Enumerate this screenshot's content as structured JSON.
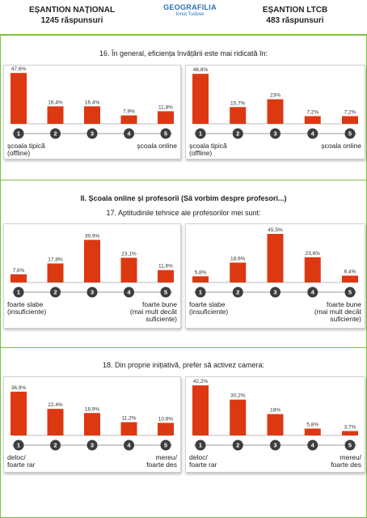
{
  "header": {
    "left_title": "EȘANTION NAȚIONAL",
    "left_sub": "1245 răspunsuri",
    "logo_main": "GEOGRAFILIA",
    "logo_sub": "Ionuț Tudose",
    "right_title": "EȘANTION LTCB",
    "right_sub": "483 răspunsuri"
  },
  "questions": {
    "q16": "16. În general, eficiența învățării este mai ridicată în:",
    "section": "II. Școala online și profesorii (Să vorbim despre profesori...)",
    "q17": "17. Aptitudinile tehnice ale profesorilor mei sunt:",
    "q18": "18. Din proprie inițiativă, prefer să activez camera:"
  },
  "colors": {
    "bar": "#dc3912",
    "circle": "#3d3d3d",
    "accent": "#7bc043"
  },
  "chart_data": [
    {
      "type": "bar",
      "question": "16",
      "sample": "EȘANTION NAȚIONAL",
      "categories": [
        "1",
        "2",
        "3",
        "4",
        "5"
      ],
      "values": [
        47.6,
        16.4,
        16.4,
        7.9,
        11.8
      ],
      "labels": [
        "47,6%",
        "16,4%",
        "16,4%",
        "7,9%",
        "11,8%"
      ],
      "ylim": [
        0,
        50
      ],
      "left_label": "școala tipică\n(offline)",
      "right_label": "școala online"
    },
    {
      "type": "bar",
      "question": "16",
      "sample": "EȘANTION LTCB",
      "categories": [
        "1",
        "2",
        "3",
        "4",
        "5"
      ],
      "values": [
        46.8,
        15.7,
        23,
        7.2,
        7.2
      ],
      "labels": [
        "46,8%",
        "15,7%",
        "23%",
        "7,2%",
        "7,2%"
      ],
      "ylim": [
        0,
        50
      ],
      "left_label": "școala tipică\n(offline)",
      "right_label": "școala online"
    },
    {
      "type": "bar",
      "question": "17",
      "sample": "EȘANTION NAȚIONAL",
      "categories": [
        "1",
        "2",
        "3",
        "4",
        "5"
      ],
      "values": [
        7.6,
        17.8,
        39.9,
        23.1,
        11.6
      ],
      "labels": [
        "7,6%",
        "17,8%",
        "39,9%",
        "23,1%",
        "11,6%"
      ],
      "ylim": [
        0,
        50
      ],
      "left_label": "foarte slabe\n(insuficiente)",
      "right_label": "foarte bune\n(mai mult decât\nsuficiente)"
    },
    {
      "type": "bar",
      "question": "17",
      "sample": "EȘANTION LTCB",
      "categories": [
        "1",
        "2",
        "3",
        "4",
        "5"
      ],
      "values": [
        5.8,
        18.6,
        45.5,
        23.6,
        6.4
      ],
      "labels": [
        "5,8%",
        "18,6%",
        "45,5%",
        "23,6%",
        "6,4%"
      ],
      "ylim": [
        0,
        50
      ],
      "left_label": "foarte slabe\n(insuficiente)",
      "right_label": "foarte bune\n(mai mult decât\nsuficiente)"
    },
    {
      "type": "bar",
      "question": "18",
      "sample": "EȘANTION NAȚIONAL",
      "categories": [
        "1",
        "2",
        "3",
        "4",
        "5"
      ],
      "values": [
        36.9,
        22.4,
        18.9,
        11.2,
        10.6
      ],
      "labels": [
        "36,9%",
        "22,4%",
        "18,9%",
        "11,2%",
        "10,6%"
      ],
      "ylim": [
        0,
        45
      ],
      "left_label": "deloc/\nfoarte rar",
      "right_label": "mereu/\nfoarte des"
    },
    {
      "type": "bar",
      "question": "18",
      "sample": "EȘANTION LTCB",
      "categories": [
        "1",
        "2",
        "3",
        "4",
        "5"
      ],
      "values": [
        42.2,
        30.2,
        18,
        5.8,
        3.7
      ],
      "labels": [
        "42,2%",
        "30,2%",
        "18%",
        "5,8%",
        "3,7%"
      ],
      "ylim": [
        0,
        45
      ],
      "left_label": "deloc/\nfoarte rar",
      "right_label": "mereu/\nfoarte des"
    }
  ]
}
